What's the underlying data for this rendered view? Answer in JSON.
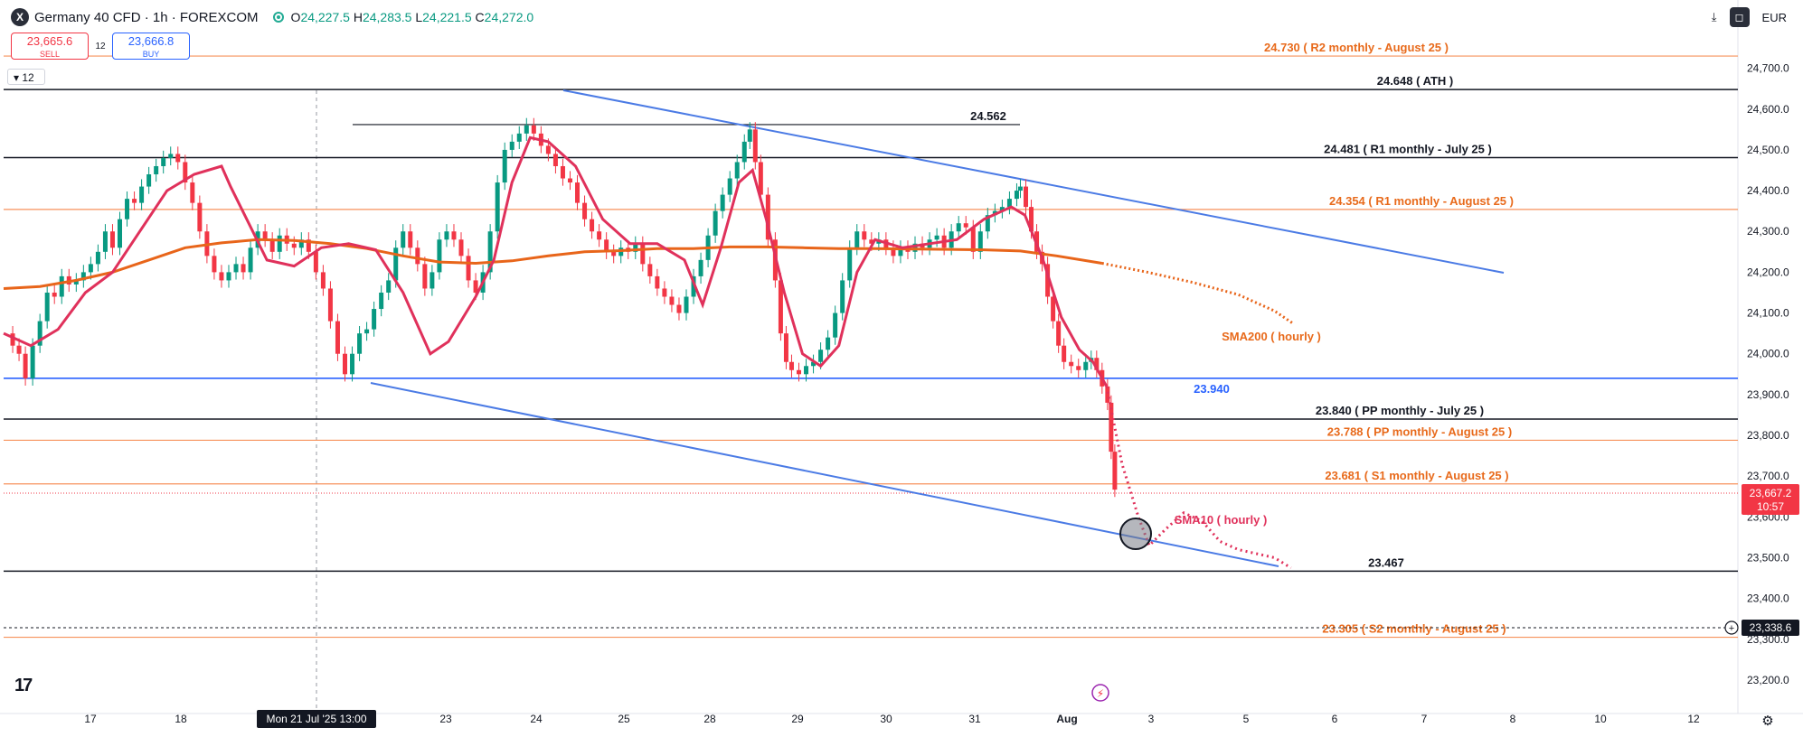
{
  "header": {
    "symbol": "Germany 40 CFD · 1h · FOREXCOM",
    "logo_letter": "X",
    "open": "24,227.5",
    "high": "24,283.5",
    "low": "24,221.5",
    "close": "24,272.0",
    "open_prefix": "O",
    "high_prefix": "H",
    "low_prefix": "L",
    "close_prefix": "C"
  },
  "trade": {
    "sell_price": "23,665.6",
    "sell_label": "SELL",
    "buy_price": "23,666.8",
    "buy_label": "BUY",
    "spread": "12",
    "lot": "12"
  },
  "toolbar": {
    "currency": "EUR",
    "download_icon": "download-icon",
    "camera_icon": "snapshot-icon"
  },
  "chart_data": {
    "type": "candlestick",
    "title": "Germany 40 CFD · 1h · FOREXCOM",
    "x_ticks": [
      "17",
      "18",
      "Mon 21 Jul '25  13:00",
      "23",
      "24",
      "25",
      "28",
      "29",
      "30",
      "31",
      "Aug",
      "3",
      "5",
      "6",
      "7",
      "8",
      "10",
      "12"
    ],
    "y_ticks": [
      "24,700.0",
      "24,600.0",
      "24,500.0",
      "24,400.0",
      "24,300.0",
      "24,200.0",
      "24,100.0",
      "24,000.0",
      "23,900.0",
      "23,800.0",
      "23,700.0",
      "23,600.0",
      "23,500.0",
      "23,400.0",
      "23,300.0",
      "23,200.0"
    ],
    "ylim": [
      23150,
      24800
    ],
    "price_series": [
      [
        0,
        24050
      ],
      [
        8,
        24020
      ],
      [
        15,
        24000
      ],
      [
        22,
        23940
      ],
      [
        30,
        24020
      ],
      [
        38,
        24080
      ],
      [
        46,
        24150
      ],
      [
        54,
        24140
      ],
      [
        62,
        24190
      ],
      [
        70,
        24170
      ],
      [
        78,
        24180
      ],
      [
        86,
        24200
      ],
      [
        94,
        24220
      ],
      [
        102,
        24250
      ],
      [
        110,
        24300
      ],
      [
        118,
        24260
      ],
      [
        126,
        24330
      ],
      [
        134,
        24380
      ],
      [
        142,
        24370
      ],
      [
        150,
        24410
      ],
      [
        158,
        24440
      ],
      [
        166,
        24460
      ],
      [
        174,
        24480
      ],
      [
        182,
        24490
      ],
      [
        190,
        24470
      ],
      [
        198,
        24420
      ],
      [
        206,
        24370
      ],
      [
        214,
        24300
      ],
      [
        222,
        24240
      ],
      [
        230,
        24200
      ],
      [
        238,
        24180
      ],
      [
        246,
        24200
      ],
      [
        254,
        24220
      ],
      [
        262,
        24200
      ],
      [
        270,
        24260
      ],
      [
        278,
        24300
      ],
      [
        286,
        24280
      ],
      [
        294,
        24250
      ],
      [
        302,
        24290
      ],
      [
        310,
        24270
      ],
      [
        318,
        24260
      ],
      [
        326,
        24280
      ],
      [
        334,
        24250
      ],
      [
        342,
        24200
      ],
      [
        350,
        24160
      ],
      [
        358,
        24080
      ],
      [
        366,
        24000
      ],
      [
        374,
        23950
      ],
      [
        382,
        24000
      ],
      [
        390,
        24050
      ],
      [
        398,
        24060
      ],
      [
        406,
        24110
      ],
      [
        414,
        24150
      ],
      [
        422,
        24180
      ],
      [
        430,
        24260
      ],
      [
        438,
        24300
      ],
      [
        446,
        24260
      ],
      [
        454,
        24220
      ],
      [
        462,
        24160
      ],
      [
        470,
        24200
      ],
      [
        478,
        24280
      ],
      [
        486,
        24300
      ],
      [
        494,
        24280
      ],
      [
        502,
        24240
      ],
      [
        510,
        24180
      ],
      [
        518,
        24150
      ],
      [
        526,
        24200
      ],
      [
        534,
        24300
      ],
      [
        542,
        24420
      ],
      [
        550,
        24500
      ],
      [
        558,
        24520
      ],
      [
        566,
        24540
      ],
      [
        574,
        24560
      ],
      [
        582,
        24540
      ],
      [
        590,
        24510
      ],
      [
        598,
        24490
      ],
      [
        606,
        24460
      ],
      [
        614,
        24430
      ],
      [
        622,
        24420
      ],
      [
        630,
        24370
      ],
      [
        638,
        24330
      ],
      [
        646,
        24300
      ],
      [
        654,
        24280
      ],
      [
        662,
        24250
      ],
      [
        670,
        24240
      ],
      [
        678,
        24260
      ],
      [
        686,
        24250
      ],
      [
        694,
        24270
      ],
      [
        702,
        24220
      ],
      [
        710,
        24190
      ],
      [
        718,
        24160
      ],
      [
        726,
        24140
      ],
      [
        734,
        24120
      ],
      [
        742,
        24100
      ],
      [
        750,
        24140
      ],
      [
        758,
        24190
      ],
      [
        766,
        24230
      ],
      [
        774,
        24290
      ],
      [
        782,
        24350
      ],
      [
        790,
        24390
      ],
      [
        798,
        24430
      ],
      [
        806,
        24470
      ],
      [
        814,
        24520
      ],
      [
        820,
        24550
      ],
      [
        826,
        24470
      ],
      [
        832,
        24390
      ],
      [
        840,
        24280
      ],
      [
        848,
        24180
      ],
      [
        854,
        24050
      ],
      [
        860,
        23980
      ],
      [
        866,
        23960
      ],
      [
        874,
        23950
      ],
      [
        882,
        23970
      ],
      [
        890,
        23980
      ],
      [
        898,
        24010
      ],
      [
        906,
        24040
      ],
      [
        914,
        24100
      ],
      [
        922,
        24180
      ],
      [
        930,
        24260
      ],
      [
        938,
        24300
      ],
      [
        946,
        24280
      ],
      [
        954,
        24270
      ],
      [
        962,
        24280
      ],
      [
        970,
        24260
      ],
      [
        978,
        24240
      ],
      [
        986,
        24260
      ],
      [
        994,
        24250
      ],
      [
        1002,
        24270
      ],
      [
        1010,
        24260
      ],
      [
        1018,
        24280
      ],
      [
        1026,
        24290
      ],
      [
        1034,
        24260
      ],
      [
        1042,
        24300
      ],
      [
        1050,
        24320
      ],
      [
        1058,
        24310
      ],
      [
        1066,
        24250
      ],
      [
        1074,
        24300
      ],
      [
        1082,
        24340
      ],
      [
        1090,
        24350
      ],
      [
        1098,
        24360
      ],
      [
        1106,
        24380
      ],
      [
        1114,
        24400
      ],
      [
        1118,
        24410
      ],
      [
        1124,
        24360
      ],
      [
        1130,
        24300
      ],
      [
        1136,
        24250
      ],
      [
        1142,
        24220
      ],
      [
        1148,
        24140
      ],
      [
        1154,
        24080
      ],
      [
        1160,
        24020
      ],
      [
        1166,
        23980
      ],
      [
        1174,
        23970
      ],
      [
        1182,
        23960
      ],
      [
        1190,
        23980
      ],
      [
        1196,
        23990
      ],
      [
        1202,
        23960
      ],
      [
        1208,
        23920
      ],
      [
        1214,
        23880
      ],
      [
        1218,
        23760
      ],
      [
        1222,
        23667
      ]
    ],
    "sma200": [
      [
        0,
        24160
      ],
      [
        40,
        24165
      ],
      [
        80,
        24180
      ],
      [
        120,
        24200
      ],
      [
        160,
        24230
      ],
      [
        200,
        24260
      ],
      [
        240,
        24272
      ],
      [
        280,
        24280
      ],
      [
        320,
        24278
      ],
      [
        360,
        24270
      ],
      [
        400,
        24258
      ],
      [
        440,
        24240
      ],
      [
        480,
        24225
      ],
      [
        520,
        24222
      ],
      [
        560,
        24228
      ],
      [
        600,
        24240
      ],
      [
        640,
        24250
      ],
      [
        680,
        24253
      ],
      [
        720,
        24258
      ],
      [
        760,
        24258
      ],
      [
        800,
        24262
      ],
      [
        840,
        24262
      ],
      [
        880,
        24260
      ],
      [
        920,
        24258
      ],
      [
        960,
        24258
      ],
      [
        1000,
        24257
      ],
      [
        1040,
        24256
      ],
      [
        1080,
        24255
      ],
      [
        1120,
        24252
      ],
      [
        1160,
        24240
      ],
      [
        1210,
        24222
      ]
    ],
    "sma200_projection": [
      [
        1210,
        24222
      ],
      [
        1260,
        24200
      ],
      [
        1310,
        24175
      ],
      [
        1360,
        24145
      ],
      [
        1400,
        24105
      ],
      [
        1420,
        24075
      ]
    ],
    "sma10": [
      [
        0,
        24050
      ],
      [
        30,
        24020
      ],
      [
        60,
        24060
      ],
      [
        90,
        24150
      ],
      [
        120,
        24200
      ],
      [
        150,
        24300
      ],
      [
        180,
        24400
      ],
      [
        210,
        24440
      ],
      [
        240,
        24460
      ],
      [
        250,
        24410
      ],
      [
        270,
        24320
      ],
      [
        290,
        24230
      ],
      [
        320,
        24215
      ],
      [
        350,
        24260
      ],
      [
        380,
        24270
      ],
      [
        410,
        24255
      ],
      [
        440,
        24150
      ],
      [
        470,
        24000
      ],
      [
        490,
        24030
      ],
      [
        520,
        24140
      ],
      [
        540,
        24230
      ],
      [
        560,
        24420
      ],
      [
        580,
        24530
      ],
      [
        600,
        24520
      ],
      [
        630,
        24460
      ],
      [
        660,
        24330
      ],
      [
        690,
        24270
      ],
      [
        720,
        24270
      ],
      [
        750,
        24230
      ],
      [
        770,
        24120
      ],
      [
        790,
        24260
      ],
      [
        810,
        24420
      ],
      [
        825,
        24450
      ],
      [
        840,
        24330
      ],
      [
        860,
        24150
      ],
      [
        880,
        24000
      ],
      [
        900,
        23970
      ],
      [
        920,
        24020
      ],
      [
        940,
        24200
      ],
      [
        960,
        24280
      ],
      [
        990,
        24260
      ],
      [
        1020,
        24270
      ],
      [
        1050,
        24280
      ],
      [
        1080,
        24330
      ],
      [
        1110,
        24360
      ],
      [
        1125,
        24340
      ],
      [
        1145,
        24230
      ],
      [
        1165,
        24090
      ],
      [
        1185,
        24010
      ],
      [
        1200,
        23980
      ],
      [
        1215,
        23920
      ]
    ],
    "sma10_projection": [
      [
        1215,
        23920
      ],
      [
        1232,
        23730
      ],
      [
        1250,
        23600
      ],
      [
        1262,
        23530
      ],
      [
        1280,
        23570
      ],
      [
        1300,
        23610
      ],
      [
        1320,
        23590
      ],
      [
        1340,
        23540
      ],
      [
        1360,
        23520
      ],
      [
        1380,
        23510
      ],
      [
        1400,
        23500
      ],
      [
        1418,
        23475
      ]
    ],
    "levels": [
      {
        "label": "24.730 ( R2 monthly - August 25 )",
        "value": 24730,
        "color": "#f7925b"
      },
      {
        "label": "24.648 ( ATH )",
        "value": 24648,
        "color": "#131722"
      },
      {
        "label": "24.562",
        "value": 24562,
        "color": "#131722",
        "short": true
      },
      {
        "label": "24.481 ( R1 monthly - July 25 )",
        "value": 24481,
        "color": "#131722"
      },
      {
        "label": "24.354 ( R1 monthly - August 25 )",
        "value": 24354,
        "color": "#f7925b"
      },
      {
        "label": "23.940",
        "value": 23940,
        "color": "#2962ff"
      },
      {
        "label": "23.840 ( PP monthly - July 25 )",
        "value": 23840,
        "color": "#131722"
      },
      {
        "label": "23.788 ( PP monthly - August 25 )",
        "value": 23788,
        "color": "#f7925b"
      },
      {
        "label": "23.681 ( S1 monthly - August 25 )",
        "value": 23681,
        "color": "#f7925b"
      },
      {
        "label": "23.467",
        "value": 23467,
        "color": "#131722"
      },
      {
        "label": "23.305 ( S2 monthly - August 25 )",
        "value": 23305,
        "color": "#f7925b"
      }
    ],
    "annotations": {
      "sma200_label": "SMA200 ( hourly )",
      "sma10_label": "SMA10 ( hourly )",
      "last_price": "23,667.2",
      "countdown": "10:57",
      "crosshair_price": "23,338.6"
    }
  }
}
